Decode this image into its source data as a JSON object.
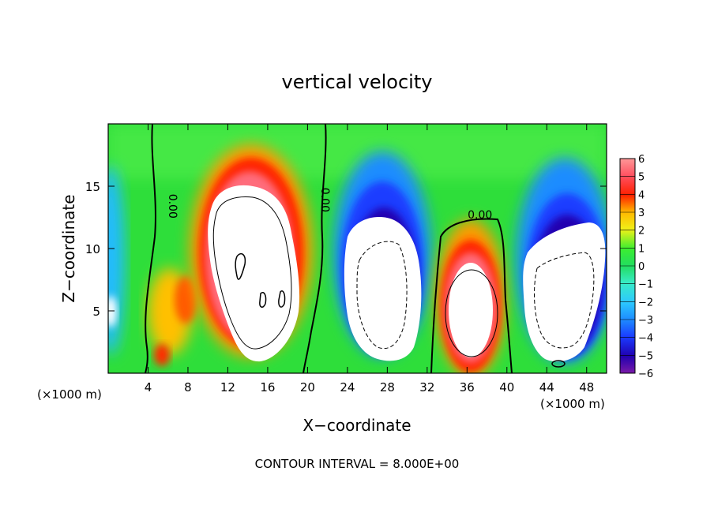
{
  "chart_data": {
    "type": "heatmap",
    "title": "vertical velocity",
    "xlabel": "X−coordinate",
    "ylabel": "Z−coordinate",
    "x_unit_left": "(×1000 m)",
    "x_unit_right": "(×1000 m)",
    "footer": "CONTOUR INTERVAL = 8.000E+00",
    "xlim": [
      0,
      50
    ],
    "ylim": [
      0,
      20
    ],
    "x_ticks": [
      4,
      8,
      12,
      16,
      20,
      24,
      28,
      32,
      36,
      40,
      44,
      48
    ],
    "x_tick_labels": [
      "4",
      "8",
      "12",
      "16",
      "20",
      "24",
      "28",
      "32",
      "36",
      "40",
      "44",
      "48"
    ],
    "y_ticks": [
      5,
      10,
      15
    ],
    "y_tick_labels": [
      "5",
      "10",
      "15"
    ],
    "colorbar": {
      "range": [
        -6,
        6
      ],
      "tick_values": [
        6,
        5,
        4,
        3,
        2,
        1,
        0,
        -1,
        -2,
        -3,
        -4,
        -5,
        -6
      ],
      "tick_labels": [
        "6",
        "5",
        "4",
        "3",
        "2",
        "1",
        "0",
        "−1",
        "−2",
        "−3",
        "−4",
        "−5",
        "−6"
      ],
      "colors": [
        "#7a1aa8",
        "#2000b0",
        "#1a3cff",
        "#1e8cff",
        "#2cc8ff",
        "#38ecc8",
        "#22dc60",
        "#3cee30",
        "#a8f020",
        "#f0f018",
        "#ffb800",
        "#ff7000",
        "#ff2000",
        "#ff5060",
        "#ff9898"
      ]
    },
    "contour_labels": [
      {
        "x": 6.1,
        "z": 13.4,
        "text": "0.00"
      },
      {
        "x": 21.4,
        "z": 13.9,
        "text": "0.00"
      },
      {
        "x": 37.3,
        "z": 12.4,
        "text": "0.00"
      }
    ]
  }
}
